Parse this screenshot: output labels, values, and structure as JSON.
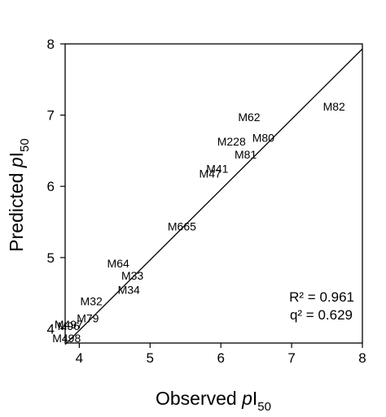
{
  "chart_data": {
    "type": "scatter",
    "xlabel": {
      "text": "Observed ",
      "italic": "p",
      "main": "I",
      "sub": "50"
    },
    "ylabel": {
      "text": "Predicted ",
      "italic": "p",
      "main": "I",
      "sub": "50"
    },
    "xlim": [
      3.8,
      8
    ],
    "ylim": [
      3.8,
      8
    ],
    "xticks": [
      4,
      5,
      6,
      7,
      8
    ],
    "yticks": [
      4,
      5,
      6,
      7,
      8
    ],
    "grid": false,
    "points": [
      {
        "label": "M82",
        "x": 7.6,
        "y": 7.12
      },
      {
        "label": "M62",
        "x": 6.4,
        "y": 6.97
      },
      {
        "label": "M80",
        "x": 6.6,
        "y": 6.68
      },
      {
        "label": "M228",
        "x": 6.15,
        "y": 6.63
      },
      {
        "label": "M81",
        "x": 6.35,
        "y": 6.45
      },
      {
        "label": "M41",
        "x": 5.95,
        "y": 6.25
      },
      {
        "label": "M47",
        "x": 5.85,
        "y": 6.18
      },
      {
        "label": "M665",
        "x": 5.45,
        "y": 5.44
      },
      {
        "label": "M64",
        "x": 4.55,
        "y": 4.92
      },
      {
        "label": "M33",
        "x": 4.75,
        "y": 4.75
      },
      {
        "label": "M34",
        "x": 4.7,
        "y": 4.55
      },
      {
        "label": "M32",
        "x": 4.17,
        "y": 4.39
      },
      {
        "label": "M79",
        "x": 4.12,
        "y": 4.15
      },
      {
        "label": "M497",
        "x": 3.85,
        "y": 4.06
      },
      {
        "label": "M96",
        "x": 3.85,
        "y": 4.04
      },
      {
        "label": "M498",
        "x": 3.82,
        "y": 3.87
      }
    ],
    "fit_line": {
      "x": [
        3.8,
        8
      ],
      "y": [
        3.78,
        7.93
      ]
    },
    "annotations": [
      "R² = 0.961",
      "q² = 0.629"
    ]
  }
}
